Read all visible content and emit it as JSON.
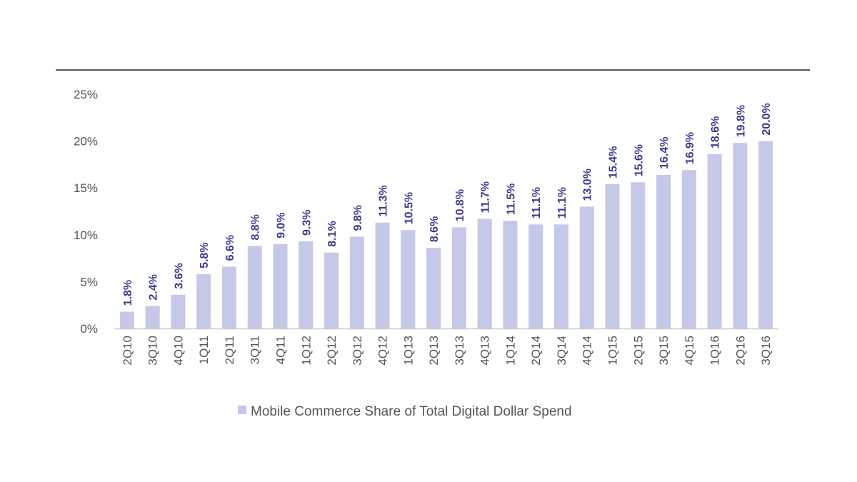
{
  "colors": {
    "bar": "#c5c8e6",
    "data_label": "#3d3b8e",
    "axis": "#cccccc",
    "rule": "#222222"
  },
  "chart_data": {
    "type": "bar",
    "categories": [
      "2Q10",
      "3Q10",
      "4Q10",
      "1Q11",
      "2Q11",
      "3Q11",
      "4Q11",
      "1Q12",
      "2Q12",
      "3Q12",
      "4Q12",
      "1Q13",
      "2Q13",
      "3Q13",
      "4Q13",
      "1Q14",
      "2Q14",
      "3Q14",
      "4Q14",
      "1Q15",
      "2Q15",
      "3Q15",
      "4Q15",
      "1Q16",
      "2Q16",
      "3Q16"
    ],
    "values": [
      1.8,
      2.4,
      3.6,
      5.8,
      6.6,
      8.8,
      9.0,
      9.3,
      8.1,
      9.8,
      11.3,
      10.5,
      8.6,
      10.8,
      11.7,
      11.5,
      11.1,
      11.1,
      13.0,
      15.4,
      15.6,
      16.4,
      16.9,
      18.6,
      19.8,
      20.0
    ],
    "data_labels": [
      "1.8%",
      "2.4%",
      "3.6%",
      "5.8%",
      "6.6%",
      "8.8%",
      "9.0%",
      "9.3%",
      "8.1%",
      "9.8%",
      "11.3%",
      "10.5%",
      "8.6%",
      "10.8%",
      "11.7%",
      "11.5%",
      "11.1%",
      "11.1%",
      "13.0%",
      "15.4%",
      "15.6%",
      "16.4%",
      "16.9%",
      "18.6%",
      "19.8%",
      "20.0%"
    ],
    "y_ticks": [
      0,
      5,
      10,
      15,
      20,
      25
    ],
    "y_tick_labels": [
      "0%",
      "5%",
      "10%",
      "15%",
      "20%",
      "25%"
    ],
    "ylim": [
      0,
      25
    ],
    "grid": false,
    "legend": {
      "placement": "bottom-center",
      "entries": [
        {
          "name": "Mobile Commerce Share of Total Digital Dollar Spend"
        }
      ]
    },
    "title": "",
    "xlabel": "",
    "ylabel": ""
  }
}
